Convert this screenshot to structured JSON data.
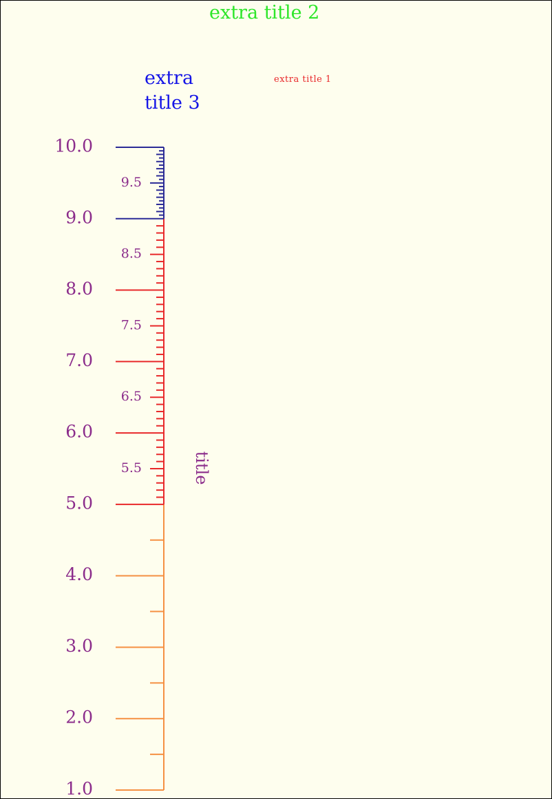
{
  "titles": {
    "extra_title_1": "extra title 1",
    "extra_title_2": "extra title 2",
    "extra_title_3": "extra title 3"
  },
  "colors": {
    "background": "#fefeee",
    "label": "#8b2c8b",
    "title1": "#e8282a",
    "title2": "#2ee62a",
    "title3": "#1414e6"
  },
  "chart_data": {
    "type": "nomographic-scale",
    "title": "title",
    "range": [
      1.0,
      10.0
    ],
    "orientation": "vertical",
    "segments": [
      {
        "from": 1.0,
        "to": 5.0,
        "color": "#f59042",
        "major_step": 1.0,
        "mid_step": 0.5,
        "minor_step": null
      },
      {
        "from": 5.0,
        "to": 9.0,
        "color": "#e8282a",
        "major_step": 1.0,
        "mid_step": 0.5,
        "minor_step": 0.1
      },
      {
        "from": 9.0,
        "to": 10.0,
        "color": "#2a2a96",
        "major_step": 1.0,
        "mid_step": 0.5,
        "minor_step": 0.05
      }
    ],
    "major_labels": [
      "1.0",
      "2.0",
      "3.0",
      "4.0",
      "5.0",
      "6.0",
      "7.0",
      "8.0",
      "9.0",
      "10.0"
    ],
    "minor_labels": [
      "5.5",
      "6.5",
      "7.5",
      "8.5",
      "9.5"
    ]
  }
}
